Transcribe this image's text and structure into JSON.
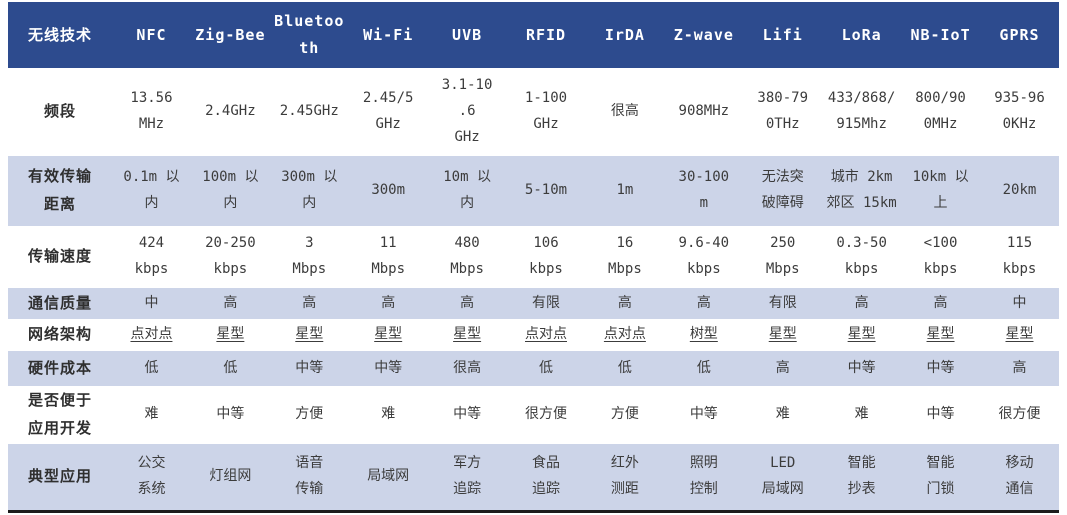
{
  "colors": {
    "header_bg": "#2d4b8e",
    "stripe_bg": "#ccd4e8",
    "header_text": "#ffffff",
    "body_text": "#3c3c3c"
  },
  "table": {
    "columns": [
      "无线技术",
      "NFC",
      "Zig-Bee",
      "Bluetooth",
      "Wi-Fi",
      "UVB",
      "RFID",
      "IrDA",
      "Z-wave",
      "Lifi",
      "LoRa",
      "NB-IoT",
      "GPRS"
    ],
    "rows": [
      {
        "label": "频段",
        "values": [
          "13.56\nMHz",
          "2.4GHz",
          "2.45GHz",
          "2.45/5\nGHz",
          "3.1-10\n.6\nGHz",
          "1-100\nGHz",
          "很高",
          "908MHz",
          "380-79\n0THz",
          "433/868/\n915Mhz",
          "800/90\n0MHz",
          "935-96\n0KHz"
        ]
      },
      {
        "label": "有效传输\n距离",
        "values": [
          "0.1m 以\n内",
          "100m 以\n内",
          "300m 以\n内",
          "300m",
          "10m 以\n内",
          "5-10m",
          "1m",
          "30-100\nm",
          "无法突\n破障碍",
          "城市 2km\n郊区 15km",
          "10km 以\n上",
          "20km"
        ]
      },
      {
        "label": "传输速度",
        "values": [
          "424\nkbps",
          "20-250\nkbps",
          "3\nMbps",
          "11\nMbps",
          "480\nMbps",
          "106\nkbps",
          "16\nMbps",
          "9.6-40\nkbps",
          "250\nMbps",
          "0.3-50\nkbps",
          "<100\nkbps",
          "115\nkbps"
        ]
      },
      {
        "label": "通信质量",
        "values": [
          "中",
          "高",
          "高",
          "高",
          "高",
          "有限",
          "高",
          "高",
          "有限",
          "高",
          "高",
          "中"
        ]
      },
      {
        "label": "网络架构",
        "values": [
          "点对点",
          "星型",
          "星型",
          "星型",
          "星型",
          "点对点",
          "点对点",
          "树型",
          "星型",
          "星型",
          "星型",
          "星型"
        ]
      },
      {
        "label": "硬件成本",
        "values": [
          "低",
          "低",
          "中等",
          "中等",
          "很高",
          "低",
          "低",
          "低",
          "高",
          "中等",
          "中等",
          "高"
        ]
      },
      {
        "label": "是否便于\n应用开发",
        "values": [
          "难",
          "中等",
          "方便",
          "难",
          "中等",
          "很方便",
          "方便",
          "中等",
          "难",
          "难",
          "中等",
          "很方便"
        ]
      },
      {
        "label": "典型应用",
        "values": [
          "公交\n系统",
          "灯组网",
          "语音\n传输",
          "局域网",
          "军方\n追踪",
          "食品\n追踪",
          "红外\n测距",
          "照明\n控制",
          "LED\n局域网",
          "智能\n抄表",
          "智能\n门锁",
          "移动\n通信"
        ]
      }
    ]
  }
}
